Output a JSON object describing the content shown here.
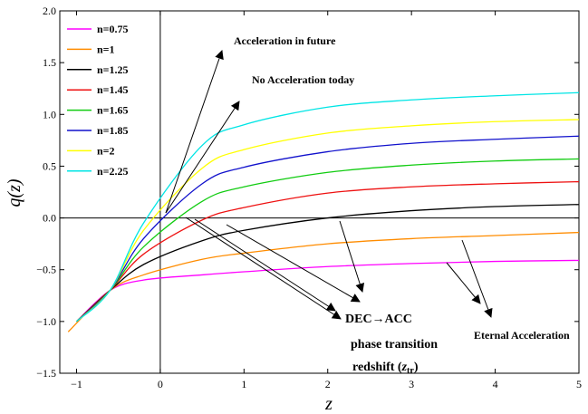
{
  "chart_data": {
    "type": "line",
    "xlabel": "z",
    "ylabel": "q(z)",
    "xlim": [
      -1.2,
      5
    ],
    "ylim": [
      -1.5,
      2.0
    ],
    "x_ticks": [
      -1,
      0,
      1,
      2,
      3,
      4,
      5
    ],
    "x_tick_labels": [
      "−1",
      "0",
      "1",
      "2",
      "3",
      "4",
      "5"
    ],
    "y_ticks": [
      -1.5,
      -1.0,
      -0.5,
      0.0,
      0.5,
      1.0,
      1.5,
      2.0
    ],
    "y_tick_labels": [
      "−1.5",
      "−1.0",
      "−0.5",
      "0.0",
      "0.5",
      "1.0",
      "1.5",
      "2.0"
    ],
    "legend_position": "top-left",
    "series": [
      {
        "name": "n=0.75",
        "color": "#ff00ff",
        "x": [
          -1.0,
          -0.6,
          -0.2,
          0.5,
          1.0,
          2.0,
          3.0,
          4.0,
          5.0
        ],
        "y": [
          -1.0,
          -0.7,
          -0.6,
          -0.55,
          -0.52,
          -0.47,
          -0.44,
          -0.42,
          -0.41
        ]
      },
      {
        "name": "n=1",
        "color": "#ff8c00",
        "x": [
          -1.1,
          -0.6,
          -0.2,
          0.5,
          1.0,
          2.0,
          3.0,
          4.0,
          5.0
        ],
        "y": [
          -1.1,
          -0.7,
          -0.55,
          -0.4,
          -0.34,
          -0.25,
          -0.2,
          -0.17,
          -0.14
        ]
      },
      {
        "name": "n=1.25",
        "color": "#000000",
        "x": [
          -1.0,
          -0.6,
          -0.2,
          0.5,
          1.0,
          2.0,
          3.0,
          4.0,
          5.0
        ],
        "y": [
          -1.0,
          -0.7,
          -0.45,
          -0.22,
          -0.12,
          0.0,
          0.07,
          0.11,
          0.13
        ]
      },
      {
        "name": "n=1.45",
        "color": "#ee1111",
        "x": [
          -1.0,
          -0.6,
          -0.2,
          0.5,
          1.0,
          2.0,
          3.0,
          4.0,
          5.0
        ],
        "y": [
          -1.0,
          -0.7,
          -0.35,
          -0.02,
          0.1,
          0.24,
          0.3,
          0.33,
          0.35
        ]
      },
      {
        "name": "n=1.65",
        "color": "#11cc11",
        "x": [
          -1.0,
          -0.6,
          -0.2,
          0.5,
          1.0,
          2.0,
          3.0,
          4.0,
          5.0
        ],
        "y": [
          -1.0,
          -0.7,
          -0.28,
          0.16,
          0.3,
          0.44,
          0.51,
          0.55,
          0.57
        ]
      },
      {
        "name": "n=1.85",
        "color": "#1111cc",
        "x": [
          -1.0,
          -0.6,
          -0.2,
          0.5,
          1.0,
          2.0,
          3.0,
          4.0,
          5.0
        ],
        "y": [
          -1.0,
          -0.7,
          -0.2,
          0.33,
          0.49,
          0.64,
          0.72,
          0.76,
          0.79
        ]
      },
      {
        "name": "n=2",
        "color": "#ffff00",
        "x": [
          -1.0,
          -0.6,
          -0.2,
          0.5,
          1.0,
          2.0,
          3.0,
          4.0,
          5.0
        ],
        "y": [
          -1.0,
          -0.7,
          -0.12,
          0.48,
          0.66,
          0.82,
          0.89,
          0.93,
          0.95
        ]
      },
      {
        "name": "n=2.25",
        "color": "#00e5e5",
        "x": [
          -1.0,
          -0.6,
          -0.2,
          0.5,
          1.0,
          2.0,
          3.0,
          4.0,
          5.0
        ],
        "y": [
          -1.0,
          -0.7,
          -0.05,
          0.7,
          0.9,
          1.07,
          1.14,
          1.18,
          1.21
        ]
      }
    ],
    "annotations": {
      "future": "Acceleration in future",
      "no_today": "No Acceleration today",
      "dec_acc": "DEC→ACC",
      "phase": "phase transition",
      "redshift": "redshift (",
      "z_sym": "z",
      "z_sub": "tr",
      "close_paren": ")",
      "eternal": "Eternal Acceleration"
    }
  }
}
